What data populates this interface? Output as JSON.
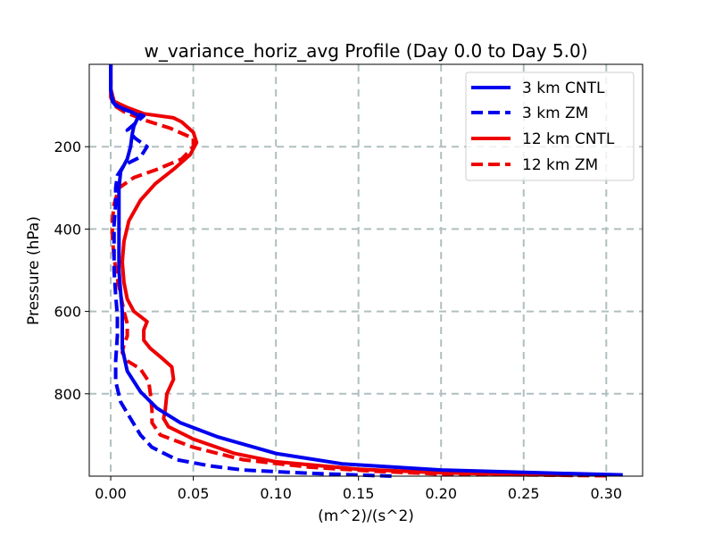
{
  "chart_data": {
    "type": "line",
    "title": "w_variance_horiz_avg Profile (Day 0.0 to Day 5.0)",
    "xlabel": "(m^2)/(s^2)",
    "ylabel": "Pressure (hPa)",
    "xlim": [
      -0.013,
      0.322
    ],
    "ylim_pressure": [
      1000,
      0
    ],
    "y_inverted": true,
    "grid": true,
    "legend_position": "top-right",
    "xticks": [
      0.0,
      0.05,
      0.1,
      0.15,
      0.2,
      0.25,
      0.3
    ],
    "xtick_labels": [
      "0.00",
      "0.05",
      "0.10",
      "0.15",
      "0.20",
      "0.25",
      "0.30"
    ],
    "yticks": [
      200,
      400,
      600,
      800
    ],
    "ytick_labels": [
      "200",
      "400",
      "600",
      "800"
    ],
    "series": [
      {
        "name": "3 km CNTL",
        "color": "#0000ee",
        "dash": "solid",
        "points": [
          [
            0.31,
            997
          ],
          [
            0.26,
            992
          ],
          [
            0.2,
            985
          ],
          [
            0.14,
            970
          ],
          [
            0.1,
            945
          ],
          [
            0.065,
            905
          ],
          [
            0.042,
            870
          ],
          [
            0.028,
            835
          ],
          [
            0.018,
            795
          ],
          [
            0.01,
            745
          ],
          [
            0.007,
            690
          ],
          [
            0.007,
            640
          ],
          [
            0.007,
            600
          ],
          [
            0.006,
            555
          ],
          [
            0.005,
            500
          ],
          [
            0.005,
            450
          ],
          [
            0.005,
            400
          ],
          [
            0.005,
            350
          ],
          [
            0.005,
            300
          ],
          [
            0.006,
            260
          ],
          [
            0.01,
            230
          ],
          [
            0.012,
            200
          ],
          [
            0.013,
            170
          ],
          [
            0.014,
            150
          ],
          [
            0.017,
            125
          ],
          [
            0.012,
            115
          ],
          [
            0.003,
            100
          ],
          [
            0.001,
            90
          ],
          [
            0.0,
            60
          ],
          [
            0.0,
            0
          ]
        ]
      },
      {
        "name": "3 km ZM",
        "color": "#0000ee",
        "dash": "dashed",
        "points": [
          [
            0.17,
            1000
          ],
          [
            0.12,
            993
          ],
          [
            0.08,
            985
          ],
          [
            0.06,
            975
          ],
          [
            0.04,
            960
          ],
          [
            0.025,
            930
          ],
          [
            0.018,
            900
          ],
          [
            0.012,
            860
          ],
          [
            0.006,
            820
          ],
          [
            0.003,
            770
          ],
          [
            0.003,
            720
          ],
          [
            0.004,
            660
          ],
          [
            0.004,
            610
          ],
          [
            0.003,
            560
          ],
          [
            0.002,
            500
          ],
          [
            0.002,
            440
          ],
          [
            0.002,
            390
          ],
          [
            0.003,
            340
          ],
          [
            0.003,
            300
          ],
          [
            0.004,
            270
          ],
          [
            0.008,
            245
          ],
          [
            0.018,
            225
          ],
          [
            0.022,
            200
          ],
          [
            0.015,
            180
          ],
          [
            0.01,
            160
          ],
          [
            0.02,
            125
          ],
          [
            0.008,
            110
          ],
          [
            0.002,
            95
          ],
          [
            0.0,
            70
          ],
          [
            0.0,
            0
          ]
        ]
      },
      {
        "name": "12 km CNTL",
        "color": "#ee0000",
        "dash": "solid",
        "points": [
          [
            0.28,
            998
          ],
          [
            0.2,
            992
          ],
          [
            0.15,
            983
          ],
          [
            0.1,
            965
          ],
          [
            0.075,
            945
          ],
          [
            0.05,
            910
          ],
          [
            0.035,
            880
          ],
          [
            0.032,
            860
          ],
          [
            0.033,
            840
          ],
          [
            0.034,
            800
          ],
          [
            0.038,
            765
          ],
          [
            0.037,
            735
          ],
          [
            0.03,
            710
          ],
          [
            0.024,
            690
          ],
          [
            0.02,
            670
          ],
          [
            0.02,
            645
          ],
          [
            0.022,
            625
          ],
          [
            0.014,
            600
          ],
          [
            0.01,
            570
          ],
          [
            0.008,
            530
          ],
          [
            0.007,
            480
          ],
          [
            0.008,
            430
          ],
          [
            0.011,
            380
          ],
          [
            0.018,
            330
          ],
          [
            0.027,
            290
          ],
          [
            0.038,
            255
          ],
          [
            0.048,
            220
          ],
          [
            0.052,
            190
          ],
          [
            0.05,
            165
          ],
          [
            0.043,
            140
          ],
          [
            0.038,
            130
          ],
          [
            0.02,
            120
          ],
          [
            0.01,
            105
          ],
          [
            0.002,
            90
          ],
          [
            0.0,
            60
          ],
          [
            0.0,
            0
          ]
        ]
      },
      {
        "name": "12 km ZM",
        "color": "#ee0000",
        "dash": "dashed",
        "points": [
          [
            0.3,
            999
          ],
          [
            0.2,
            995
          ],
          [
            0.16,
            988
          ],
          [
            0.12,
            978
          ],
          [
            0.08,
            960
          ],
          [
            0.05,
            930
          ],
          [
            0.03,
            900
          ],
          [
            0.025,
            870
          ],
          [
            0.025,
            840
          ],
          [
            0.024,
            800
          ],
          [
            0.023,
            770
          ],
          [
            0.018,
            740
          ],
          [
            0.01,
            720
          ],
          [
            0.007,
            700
          ],
          [
            0.008,
            680
          ],
          [
            0.01,
            660
          ],
          [
            0.01,
            630
          ],
          [
            0.008,
            600
          ],
          [
            0.006,
            560
          ],
          [
            0.004,
            520
          ],
          [
            0.002,
            470
          ],
          [
            0.001,
            420
          ],
          [
            0.001,
            380
          ],
          [
            0.002,
            340
          ],
          [
            0.005,
            300
          ],
          [
            0.014,
            275
          ],
          [
            0.028,
            255
          ],
          [
            0.043,
            230
          ],
          [
            0.05,
            200
          ],
          [
            0.05,
            180
          ],
          [
            0.036,
            155
          ],
          [
            0.02,
            135
          ],
          [
            0.008,
            115
          ],
          [
            0.002,
            100
          ],
          [
            0.0,
            80
          ],
          [
            0.0,
            0
          ]
        ]
      }
    ]
  }
}
